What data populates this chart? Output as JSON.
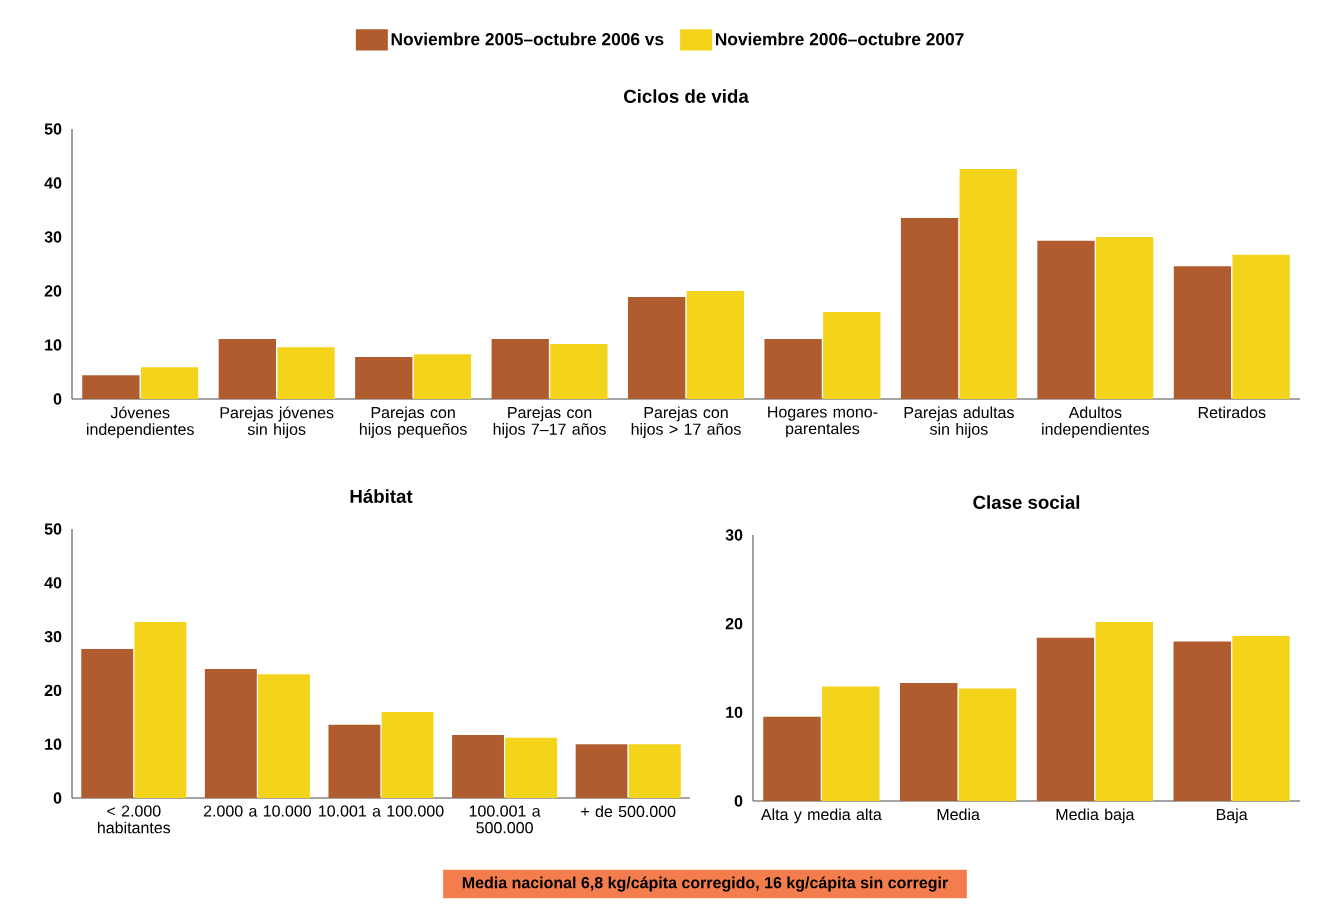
{
  "chart_data": [
    {
      "type": "bar",
      "title": "Ciclos de vida",
      "legend": "top",
      "categories": [
        "Jóvenes independientes",
        "Parejas jóvenes sin hijos",
        "Parejas con hijos pequeños",
        "Parejas con hijos 7–17 años",
        "Parejas con hijos > 17 años",
        "Hogares mono-parentales",
        "Parejas adultas sin hijos",
        "Adultos independientes",
        "Retirados"
      ],
      "series": [
        {
          "name": "Noviembre 2005–octubre 2006 vs",
          "color": "#b05c2e",
          "values": [
            4.4,
            11.1,
            7.8,
            11.1,
            18.9,
            11.1,
            33.5,
            29.3,
            24.6
          ]
        },
        {
          "name": "Noviembre 2006–octubre 2007",
          "color": "#f4d31b",
          "values": [
            5.9,
            9.6,
            8.3,
            10.2,
            20.0,
            16.1,
            42.6,
            30.0,
            26.7
          ]
        }
      ],
      "ylim": [
        0,
        50
      ],
      "yticks": [
        0,
        10,
        20,
        30,
        40,
        50
      ],
      "annotations": [
        "Media nacional 6,8 kg/cápita corregido, 16 kg/cápita sin corregir"
      ]
    },
    {
      "type": "bar",
      "title": "Hábitat",
      "categories": [
        "< 2.000 habitantes",
        "2.000 a 10.000",
        "10.001 a 100.000",
        "100.001 a 500.000",
        "+ de 500.000"
      ],
      "series": [
        {
          "color": "#b05c2e",
          "values": [
            27.7,
            24.0,
            13.6,
            11.7,
            10.0
          ]
        },
        {
          "color": "#f4d31b",
          "values": [
            32.7,
            23.0,
            16.0,
            11.2,
            10.0
          ]
        }
      ],
      "ylim": [
        0,
        50
      ],
      "yticks": [
        0,
        10,
        20,
        30,
        40,
        50
      ]
    },
    {
      "type": "bar",
      "title": "Clase social",
      "categories": [
        "Alta y media alta",
        "Media",
        "Media baja",
        "Baja"
      ],
      "series": [
        {
          "color": "#b05c2e",
          "values": [
            9.5,
            13.3,
            18.4,
            18.0
          ]
        },
        {
          "color": "#f4d31b",
          "values": [
            12.9,
            12.7,
            20.2,
            18.6
          ]
        }
      ],
      "ylim": [
        0,
        30
      ],
      "yticks": [
        0,
        10,
        20,
        30
      ]
    }
  ]
}
